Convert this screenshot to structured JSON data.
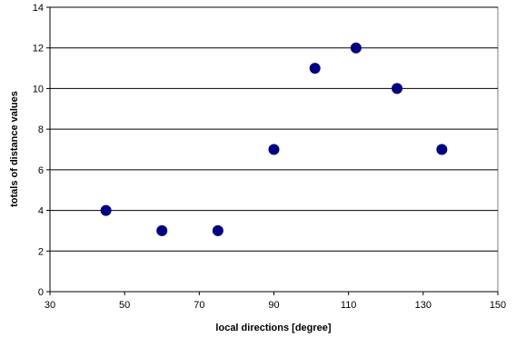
{
  "chart_data": {
    "type": "scatter",
    "xlabel": "local directions [degree]",
    "ylabel": "totals of distance  values",
    "xlim": [
      30,
      150
    ],
    "ylim": [
      0,
      14
    ],
    "xticks": [
      30,
      50,
      70,
      90,
      110,
      130,
      150
    ],
    "yticks": [
      0,
      2,
      4,
      6,
      8,
      10,
      12,
      14
    ],
    "grid": "horizontal",
    "legend": "none",
    "marker_color": "#000080",
    "points": [
      {
        "x": 45,
        "y": 4
      },
      {
        "x": 60,
        "y": 3
      },
      {
        "x": 75,
        "y": 3
      },
      {
        "x": 90,
        "y": 7
      },
      {
        "x": 101,
        "y": 11
      },
      {
        "x": 112,
        "y": 12
      },
      {
        "x": 123,
        "y": 10
      },
      {
        "x": 135,
        "y": 7
      }
    ]
  }
}
